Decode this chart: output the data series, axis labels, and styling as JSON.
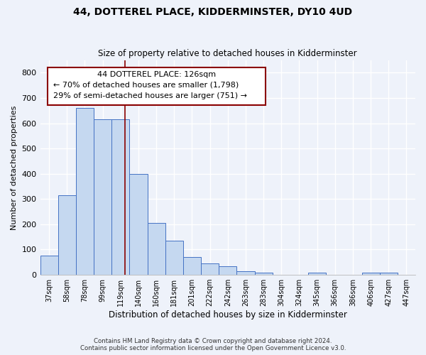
{
  "title": "44, DOTTEREL PLACE, KIDDERMINSTER, DY10 4UD",
  "subtitle": "Size of property relative to detached houses in Kidderminster",
  "xlabel": "Distribution of detached houses by size in Kidderminster",
  "ylabel": "Number of detached properties",
  "bin_labels": [
    "37sqm",
    "58sqm",
    "78sqm",
    "99sqm",
    "119sqm",
    "140sqm",
    "160sqm",
    "181sqm",
    "201sqm",
    "222sqm",
    "242sqm",
    "263sqm",
    "283sqm",
    "304sqm",
    "324sqm",
    "345sqm",
    "366sqm",
    "386sqm",
    "406sqm",
    "427sqm",
    "447sqm"
  ],
  "bar_values": [
    75,
    315,
    660,
    615,
    615,
    400,
    205,
    135,
    70,
    45,
    35,
    15,
    10,
    0,
    0,
    8,
    0,
    0,
    8,
    8,
    0
  ],
  "bar_color": "#c5d8f0",
  "bar_edge_color": "#4472c4",
  "ylim": [
    0,
    850
  ],
  "yticks": [
    0,
    100,
    200,
    300,
    400,
    500,
    600,
    700,
    800
  ],
  "property_line_x": 4.73,
  "property_line_color": "#8b0000",
  "annotation_line1": "44 DOTTEREL PLACE: 126sqm",
  "annotation_line2": "← 70% of detached houses are smaller (1,798)",
  "annotation_line3": "29% of semi-detached houses are larger (751) →",
  "annotation_box_color": "#8b0000",
  "footer_line1": "Contains HM Land Registry data © Crown copyright and database right 2024.",
  "footer_line2": "Contains public sector information licensed under the Open Government Licence v3.0.",
  "background_color": "#eef2fa",
  "grid_color": "#ffffff"
}
